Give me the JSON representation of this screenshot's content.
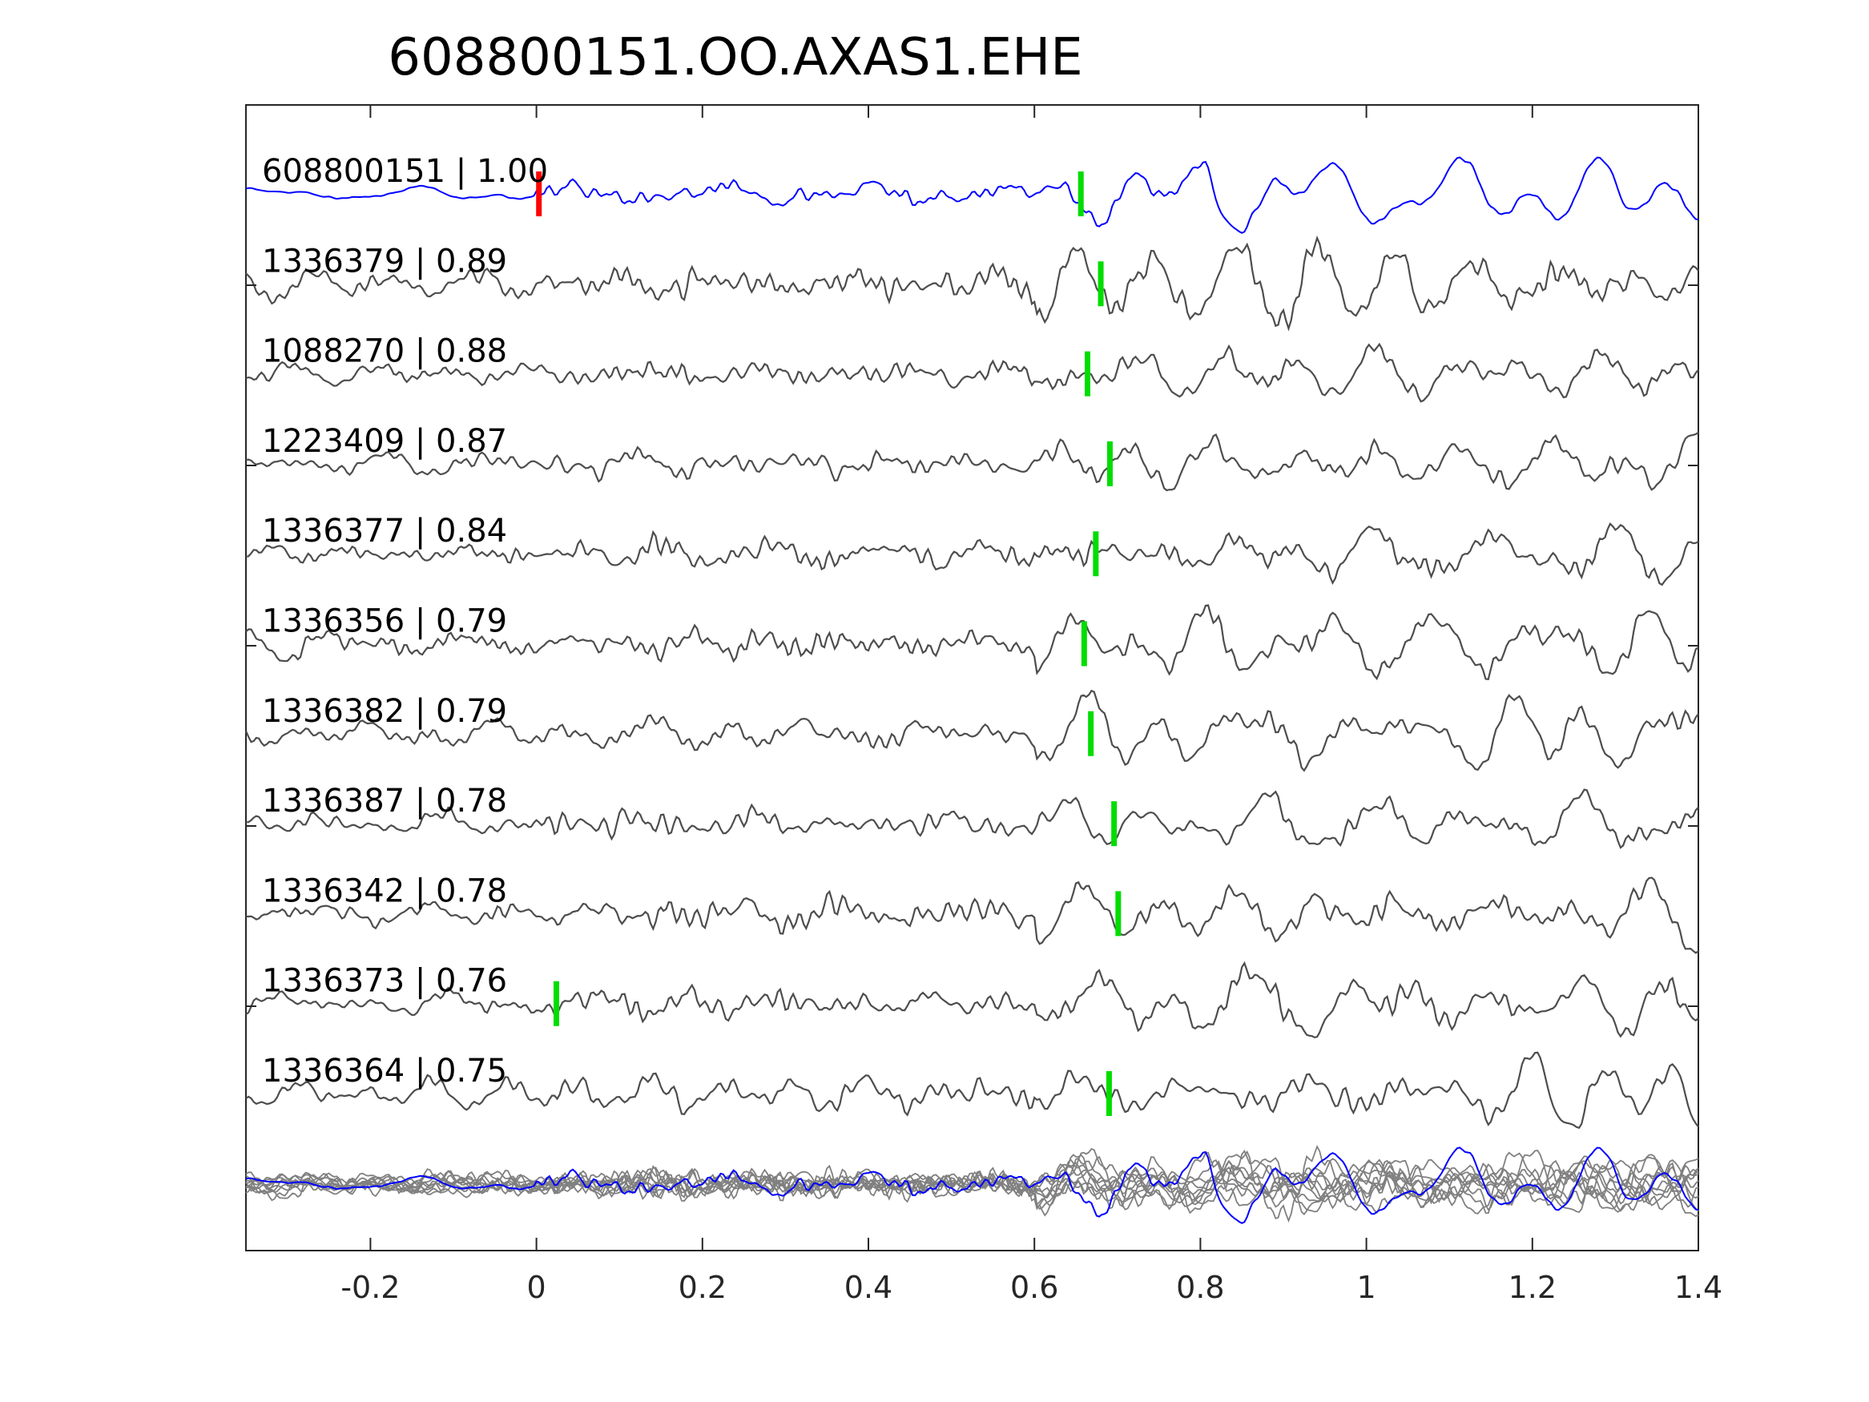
{
  "chart_data": {
    "type": "line",
    "title": "608800151.OO.AXAS1.EHE",
    "xlabel": "",
    "ylabel": "",
    "xlim": [
      -0.35,
      1.4
    ],
    "xticks": [
      -0.2,
      0,
      0.2,
      0.4,
      0.6,
      0.8,
      1,
      1.2,
      1.4
    ],
    "xtick_labels": [
      "-0.2",
      "0",
      "0.2",
      "0.4",
      "0.6",
      "0.8",
      "1",
      "1.2",
      "1.4"
    ],
    "grid": false,
    "colors": {
      "reference": "#0000ff",
      "trace": "#4d4d4d",
      "stack": "#808080",
      "origin_marker": "#ff0000",
      "pick_marker": "#00dd00"
    },
    "reference_marker_time": 0.003,
    "traces": [
      {
        "label": "608800151 | 1.00",
        "pick": 0.656,
        "reference": true
      },
      {
        "label": "1336379 | 0.89",
        "pick": 0.68
      },
      {
        "label": "1088270 | 0.88",
        "pick": 0.664
      },
      {
        "label": "1223409 | 0.87",
        "pick": 0.691
      },
      {
        "label": "1336377 | 0.84",
        "pick": 0.674
      },
      {
        "label": "1336356 | 0.79",
        "pick": 0.66
      },
      {
        "label": "1336382 | 0.79",
        "pick": 0.668
      },
      {
        "label": "1336387 | 0.78",
        "pick": 0.696
      },
      {
        "label": "1336342 | 0.78",
        "pick": 0.701
      },
      {
        "label": "1336373 | 0.76",
        "pick": 0.024
      },
      {
        "label": "1336364 | 0.75",
        "pick": 0.69
      }
    ]
  }
}
